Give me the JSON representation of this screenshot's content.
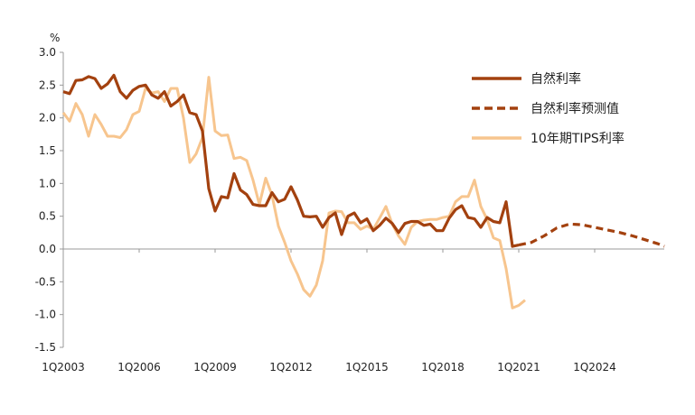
{
  "chart_data": {
    "type": "line",
    "title": "",
    "xlabel": "",
    "ylabel": "%",
    "ylim": [
      -1.5,
      3.0
    ],
    "yticks": [
      "3.0",
      "2.5",
      "2.0",
      "1.5",
      "1.0",
      "0.5",
      "0.0",
      "-0.5",
      "-1.0",
      "-1.5"
    ],
    "xticks": [
      "1Q2003",
      "1Q2006",
      "1Q2009",
      "1Q2012",
      "1Q2015",
      "1Q2018",
      "1Q2021",
      "1Q2024"
    ],
    "grid": false,
    "legend_position": "top-right",
    "colors": {
      "natural_rate": "#a3410f",
      "forecast": "#a3410f",
      "tips": "#f7c58e",
      "axis": "#999999"
    },
    "series": [
      {
        "name": "自然利率",
        "style": "solid",
        "x": [
          2003.0,
          2003.25,
          2003.5,
          2003.75,
          2004.0,
          2004.25,
          2004.5,
          2004.75,
          2005.0,
          2005.25,
          2005.5,
          2005.75,
          2006.0,
          2006.25,
          2006.5,
          2006.75,
          2007.0,
          2007.25,
          2007.5,
          2007.75,
          2008.0,
          2008.25,
          2008.5,
          2008.75,
          2009.0,
          2009.25,
          2009.5,
          2009.75,
          2010.0,
          2010.25,
          2010.5,
          2010.75,
          2011.0,
          2011.25,
          2011.5,
          2011.75,
          2012.0,
          2012.25,
          2012.5,
          2012.75,
          2013.0,
          2013.25,
          2013.5,
          2013.75,
          2014.0,
          2014.25,
          2014.5,
          2014.75,
          2015.0,
          2015.25,
          2015.5,
          2015.75,
          2016.0,
          2016.25,
          2016.5,
          2016.75,
          2017.0,
          2017.25,
          2017.5,
          2017.75,
          2018.0,
          2018.25,
          2018.5,
          2018.75,
          2019.0,
          2019.25,
          2019.5,
          2019.75,
          2020.0,
          2020.25,
          2020.5,
          2020.75,
          2021.0
        ],
        "values": [
          2.4,
          2.37,
          2.57,
          2.58,
          2.63,
          2.6,
          2.45,
          2.52,
          2.65,
          2.4,
          2.3,
          2.42,
          2.48,
          2.5,
          2.35,
          2.3,
          2.4,
          2.18,
          2.25,
          2.35,
          2.08,
          2.05,
          1.8,
          0.92,
          0.58,
          0.8,
          0.78,
          1.15,
          0.9,
          0.83,
          0.68,
          0.66,
          0.66,
          0.86,
          0.72,
          0.76,
          0.95,
          0.75,
          0.5,
          0.49,
          0.5,
          0.33,
          0.48,
          0.55,
          0.22,
          0.5,
          0.55,
          0.4,
          0.46,
          0.28,
          0.36,
          0.47,
          0.39,
          0.25,
          0.39,
          0.42,
          0.42,
          0.36,
          0.38,
          0.28,
          0.28,
          0.47,
          0.6,
          0.66,
          0.48,
          0.46,
          0.33,
          0.48,
          0.42,
          0.4,
          0.72,
          0.04,
          0.06
        ]
      },
      {
        "name": "自然利率预测值",
        "style": "dashed",
        "x": [
          2021.0,
          2021.5,
          2022.0,
          2022.5,
          2023.0,
          2023.5,
          2024.0,
          2024.5,
          2025.0,
          2025.5,
          2026.0,
          2026.5,
          2026.75
        ],
        "values": [
          0.06,
          0.1,
          0.2,
          0.32,
          0.38,
          0.37,
          0.33,
          0.29,
          0.25,
          0.2,
          0.14,
          0.08,
          0.04
        ]
      },
      {
        "name": "10年期TIPS利率",
        "style": "solid",
        "x": [
          2003.0,
          2003.25,
          2003.5,
          2003.75,
          2004.0,
          2004.25,
          2004.5,
          2004.75,
          2005.0,
          2005.25,
          2005.5,
          2005.75,
          2006.0,
          2006.25,
          2006.5,
          2006.75,
          2007.0,
          2007.25,
          2007.5,
          2007.75,
          2008.0,
          2008.25,
          2008.5,
          2008.75,
          2009.0,
          2009.25,
          2009.5,
          2009.75,
          2010.0,
          2010.25,
          2010.5,
          2010.75,
          2011.0,
          2011.25,
          2011.5,
          2011.75,
          2012.0,
          2012.25,
          2012.5,
          2012.75,
          2013.0,
          2013.25,
          2013.5,
          2013.75,
          2014.0,
          2014.25,
          2014.5,
          2014.75,
          2015.0,
          2015.25,
          2015.5,
          2015.75,
          2016.0,
          2016.25,
          2016.5,
          2016.75,
          2017.0,
          2017.25,
          2017.5,
          2017.75,
          2018.0,
          2018.25,
          2018.5,
          2018.75,
          2019.0,
          2019.25,
          2019.5,
          2019.75,
          2020.0,
          2020.25,
          2020.5,
          2020.75,
          2021.0,
          2021.25
        ],
        "values": [
          2.08,
          1.95,
          2.22,
          2.05,
          1.72,
          2.05,
          1.9,
          1.72,
          1.72,
          1.7,
          1.82,
          2.05,
          2.1,
          2.45,
          2.38,
          2.4,
          2.25,
          2.45,
          2.45,
          2.0,
          1.32,
          1.45,
          1.7,
          2.62,
          1.8,
          1.73,
          1.74,
          1.38,
          1.4,
          1.35,
          1.05,
          0.68,
          1.08,
          0.82,
          0.35,
          0.1,
          -0.18,
          -0.38,
          -0.62,
          -0.72,
          -0.55,
          -0.18,
          0.55,
          0.58,
          0.57,
          0.4,
          0.4,
          0.3,
          0.35,
          0.3,
          0.47,
          0.65,
          0.38,
          0.2,
          0.07,
          0.33,
          0.42,
          0.44,
          0.45,
          0.45,
          0.48,
          0.5,
          0.72,
          0.8,
          0.8,
          1.05,
          0.65,
          0.45,
          0.17,
          0.13,
          -0.3,
          -0.9,
          -0.86,
          -0.78
        ]
      }
    ]
  }
}
